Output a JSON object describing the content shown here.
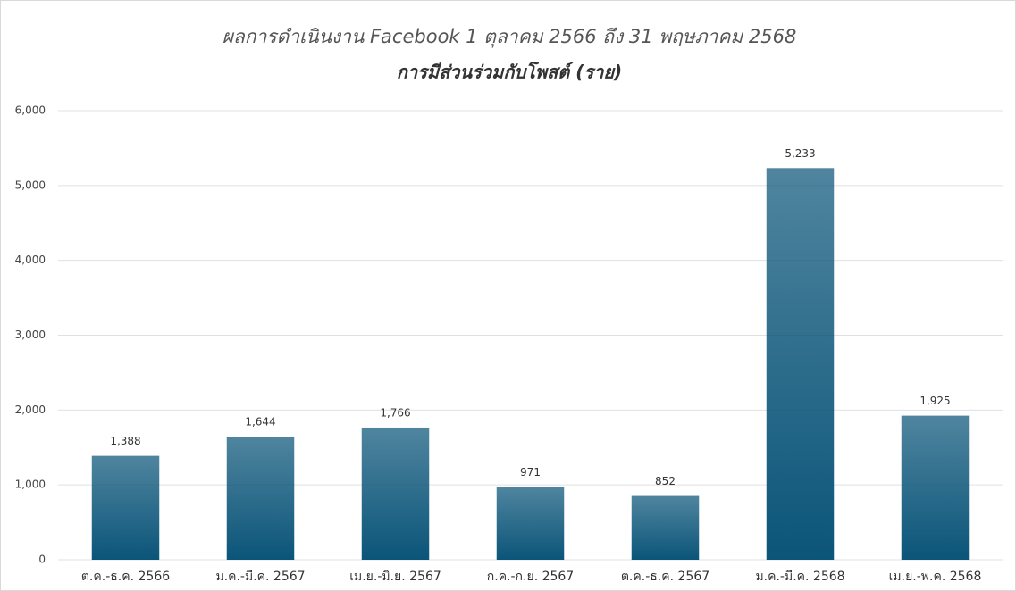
{
  "chart_data": {
    "type": "bar",
    "title": "ผลการดำเนินงาน Facebook 1 ตุลาคม 2566 ถึง 31 พฤษภาคม 2568",
    "subtitle": "การมีส่วนร่วมกับโพสต์ (ราย)",
    "categories": [
      "ต.ค.-ธ.ค. 2566",
      "ม.ค.-มี.ค. 2567",
      "เม.ย.-มิ.ย. 2567",
      "ก.ค.-ก.ย. 2567",
      "ต.ค.-ธ.ค. 2567",
      "ม.ค.-มี.ค. 2568",
      "เม.ย.-พ.ค. 2568"
    ],
    "values": [
      1388,
      1644,
      1766,
      971,
      852,
      5233,
      1925
    ],
    "value_labels": [
      "1,388",
      "1,644",
      "1,766",
      "971",
      "852",
      "5,233",
      "1,925"
    ],
    "color": "#0b5579",
    "ylim": [
      0,
      6000
    ],
    "yticks": [
      0,
      {
        "value": 1000,
        "label": "1,000"
      },
      {
        "value": 2000,
        "label": "2,000"
      },
      {
        "value": 3000,
        "label": "3,000"
      },
      {
        "value": 4000,
        "label": "4,000"
      },
      {
        "value": 5000,
        "label": "5,000"
      },
      {
        "value": 6000,
        "label": "6,000"
      }
    ],
    "grid": true
  }
}
